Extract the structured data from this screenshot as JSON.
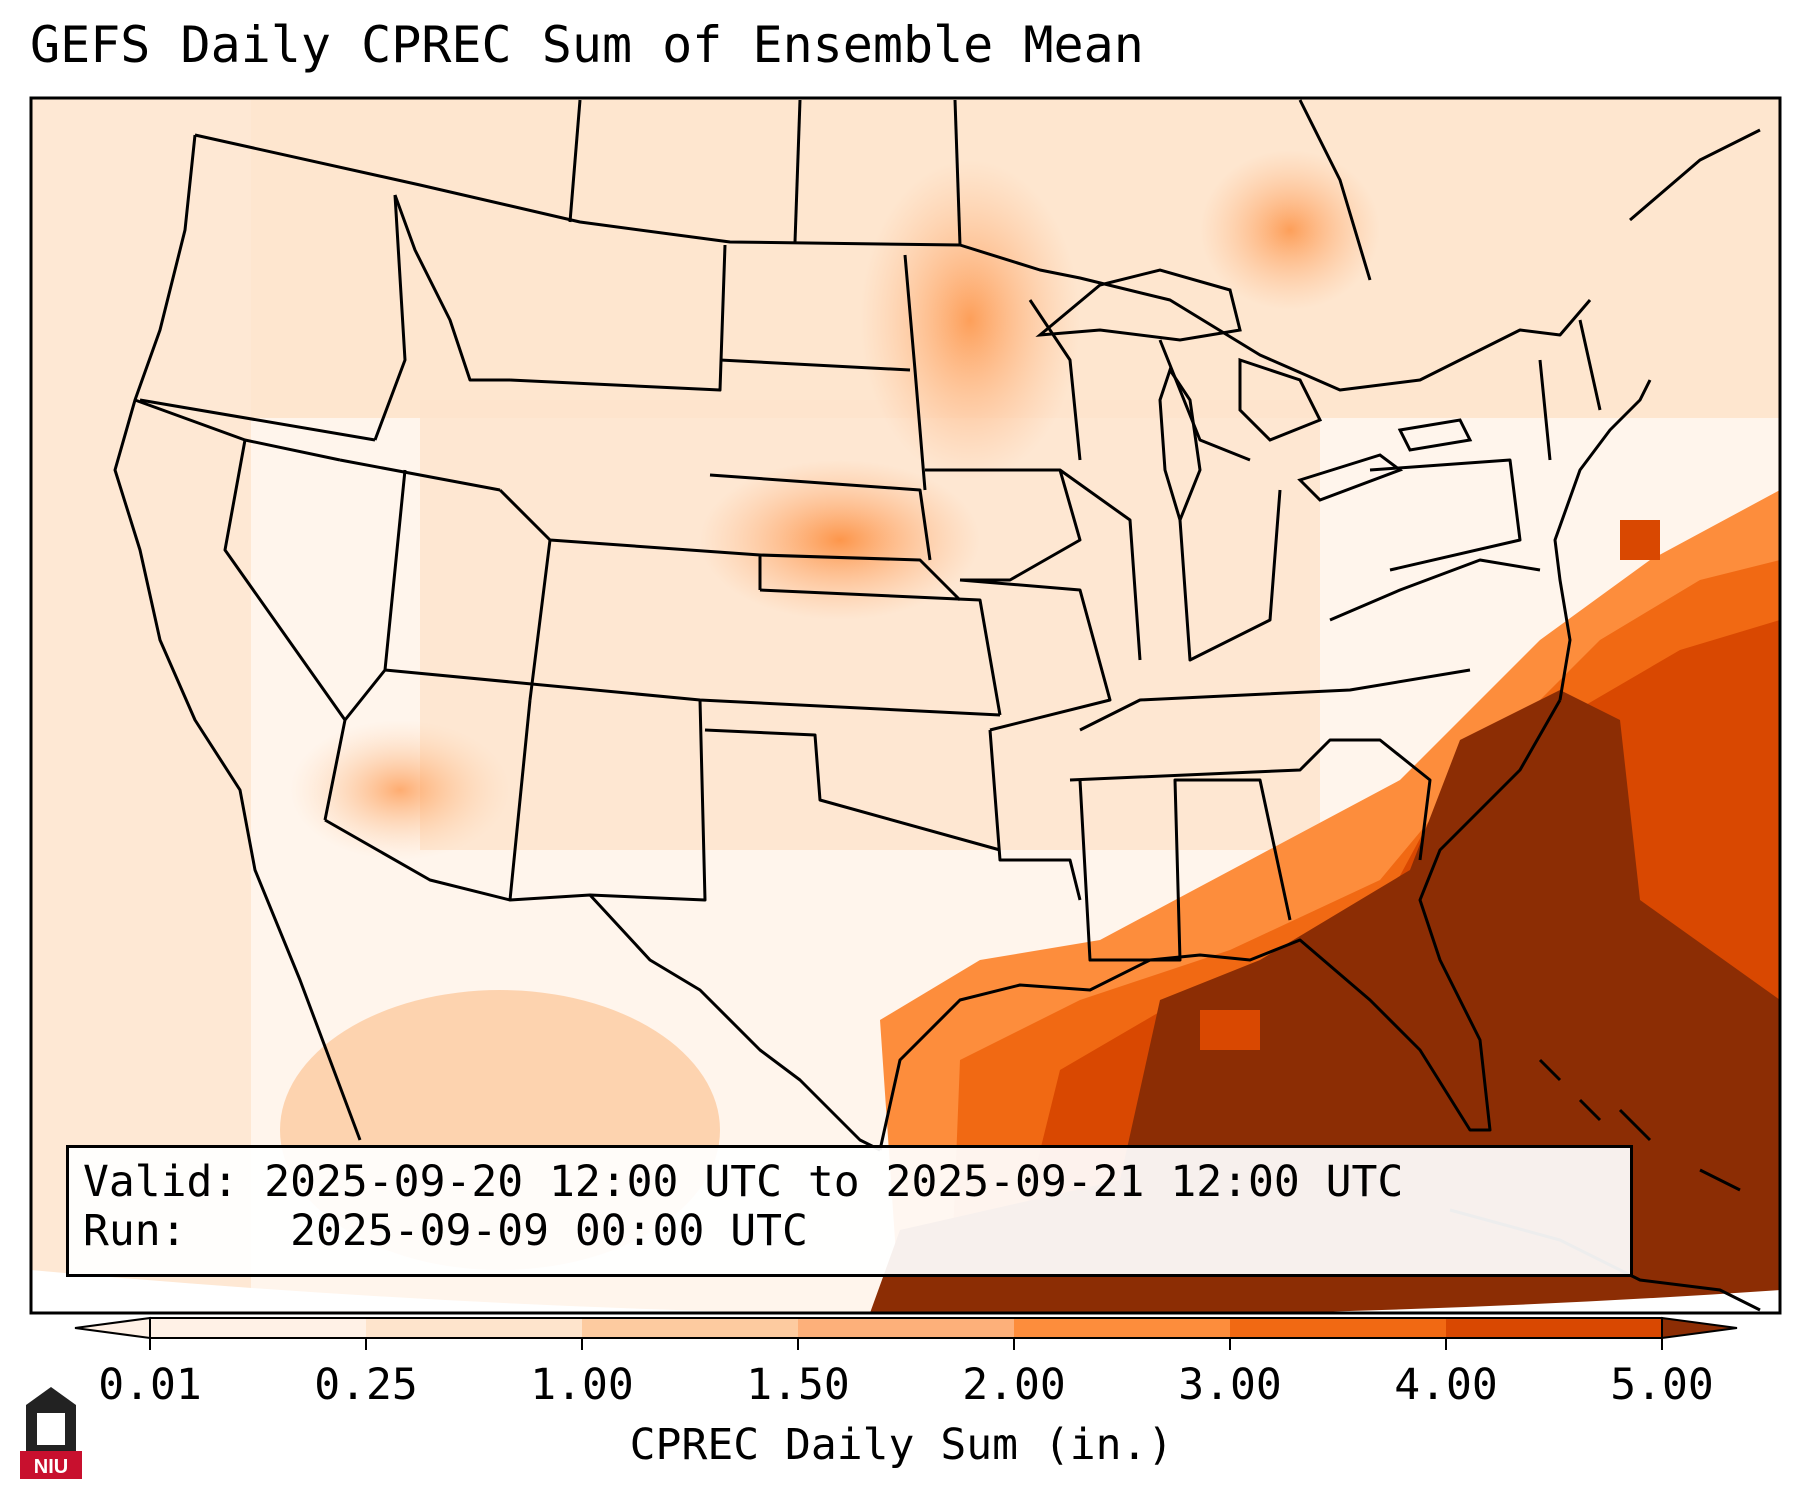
{
  "title": "GEFS Daily CPREC Sum of Ensemble Mean",
  "info": {
    "valid_label": "Valid:",
    "valid_value": "2025-09-20 12:00 UTC to 2025-09-21 12:00 UTC",
    "run_label": "Run:",
    "run_value": "2025-09-09 00:00 UTC"
  },
  "colorbar": {
    "label": "CPREC Daily Sum (in.)",
    "ticks": [
      "0.01",
      "0.25",
      "1.00",
      "1.50",
      "2.00",
      "3.00",
      "4.00",
      "5.00"
    ],
    "colors": [
      "#fff1e6",
      "#fee4cc",
      "#fdcba0",
      "#fdb07a",
      "#fd8d3c",
      "#f16913",
      "#d94801",
      "#8c2d04"
    ],
    "extend": "both"
  },
  "logo": {
    "text": "NIU"
  }
}
